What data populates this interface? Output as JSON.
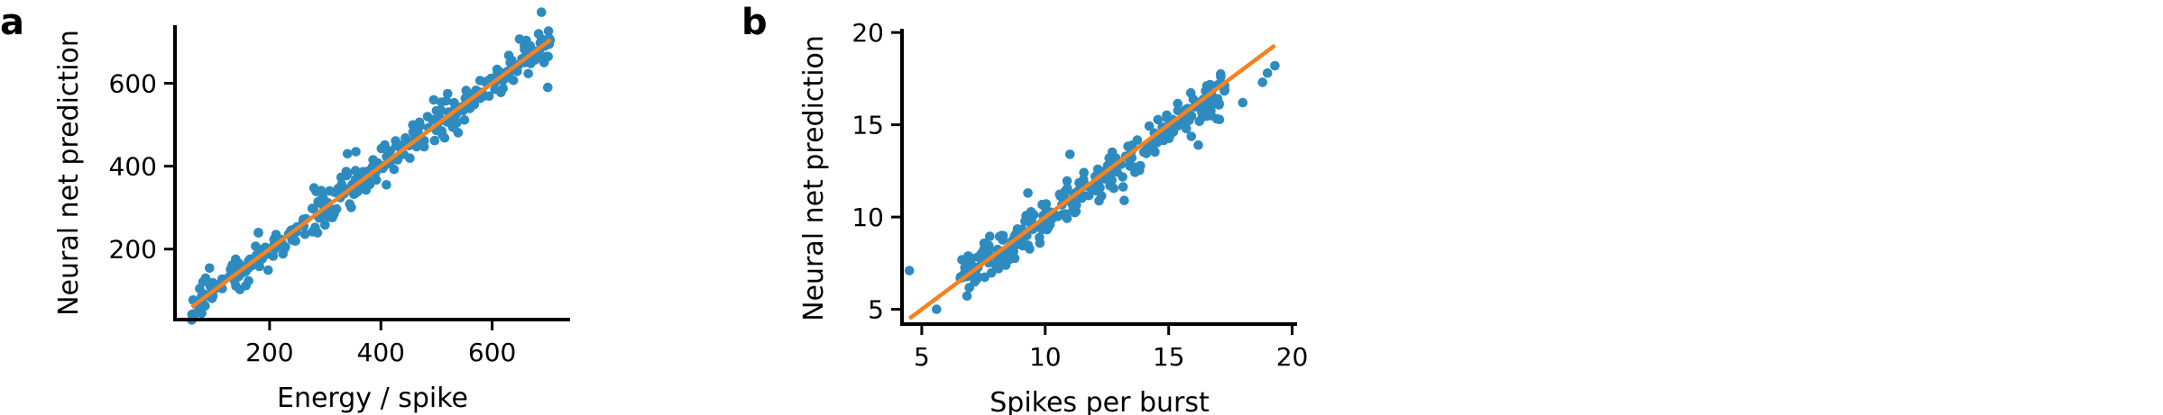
{
  "chart_data": [
    {
      "panel_label": "a",
      "type": "scatter",
      "xlabel": "Energy / spike",
      "ylabel": "Neural net prediction",
      "xlim": [
        30,
        740
      ],
      "ylim": [
        30,
        740
      ],
      "xticks": [
        200,
        400,
        600
      ],
      "yticks": [
        200,
        400,
        600
      ],
      "grid": false,
      "point_color": "#2e8bc0",
      "fit_color": "#f5821f",
      "fit_line": {
        "x": [
          60,
          705
        ],
        "y": [
          60,
          705
        ]
      },
      "trend": {
        "x_min": 60,
        "x_max": 705,
        "slope": 1.0,
        "intercept": 0,
        "spread": 22,
        "n": 320,
        "seed": 7
      },
      "outliers": [
        {
          "x": 700,
          "y": 590
        },
        {
          "x": 355,
          "y": 435
        },
        {
          "x": 340,
          "y": 430
        },
        {
          "x": 520,
          "y": 575
        },
        {
          "x": 495,
          "y": 560
        },
        {
          "x": 180,
          "y": 240
        },
        {
          "x": 85,
          "y": 130
        },
        {
          "x": 410,
          "y": 355
        }
      ]
    },
    {
      "panel_label": "b",
      "type": "scatter",
      "xlabel": "Spikes per burst",
      "ylabel": "Neural net prediction",
      "xlim": [
        4.2,
        20.2
      ],
      "ylim": [
        4.2,
        20.2
      ],
      "xticks": [
        5,
        10,
        15,
        20
      ],
      "yticks": [
        5,
        10,
        15,
        20
      ],
      "grid": false,
      "point_color": "#2e8bc0",
      "fit_color": "#f5821f",
      "fit_line": {
        "x": [
          4.5,
          19.3
        ],
        "y": [
          4.5,
          19.3
        ]
      },
      "trend": {
        "x_min": 6.5,
        "x_max": 17.3,
        "slope": 0.95,
        "intercept": 0.4,
        "spread": 0.55,
        "n": 300,
        "seed": 13
      },
      "outliers": [
        {
          "x": 4.5,
          "y": 7.1
        },
        {
          "x": 5.6,
          "y": 5.0
        },
        {
          "x": 9.3,
          "y": 11.3
        },
        {
          "x": 18.0,
          "y": 16.2
        },
        {
          "x": 18.8,
          "y": 17.3
        },
        {
          "x": 19.0,
          "y": 17.8
        },
        {
          "x": 19.3,
          "y": 18.2
        },
        {
          "x": 13.2,
          "y": 10.9
        },
        {
          "x": 11.0,
          "y": 13.4
        },
        {
          "x": 16.2,
          "y": 13.9
        }
      ]
    }
  ]
}
